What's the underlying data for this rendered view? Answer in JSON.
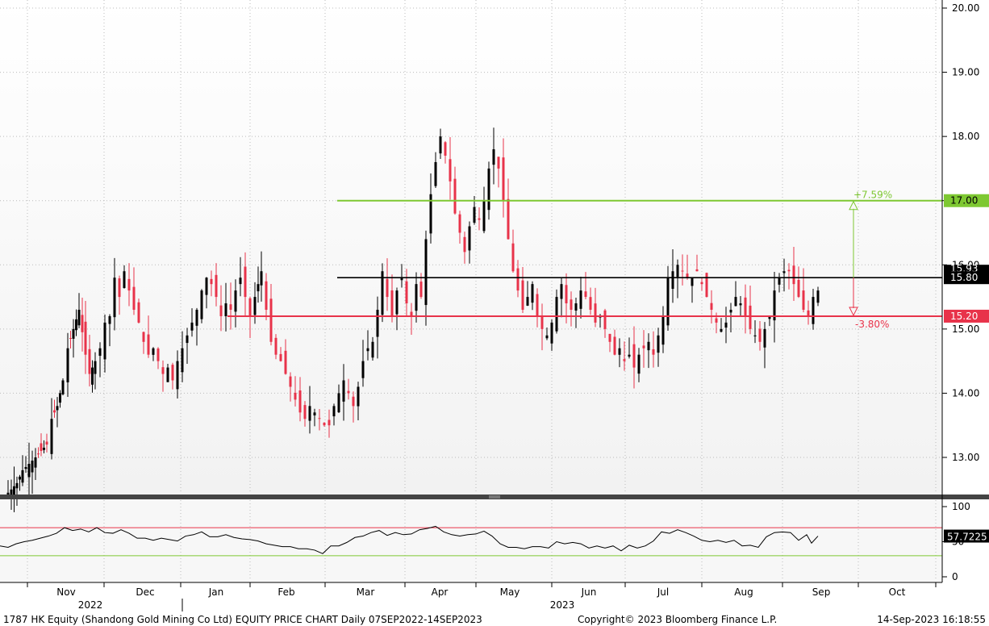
{
  "chart_data": [
    {
      "type": "candlestick",
      "panel": "price",
      "ylim": [
        12.4,
        20.0
      ],
      "yticks": [
        "13.00",
        "14.00",
        "15.00",
        "16.00",
        "17.00",
        "18.00",
        "19.00",
        "20.00"
      ],
      "grid": true,
      "series": [
        {
          "name": "",
          "close_path": [
            [
              0,
              12.4
            ],
            [
              8,
              12.5
            ],
            [
              15,
              12.6
            ],
            [
              22,
              12.8
            ],
            [
              30,
              12.9
            ],
            [
              38,
              13.0
            ],
            [
              45,
              13.1
            ],
            [
              52,
              13.2
            ],
            [
              58,
              13.6
            ],
            [
              65,
              13.8
            ],
            [
              72,
              14.2
            ],
            [
              78,
              14.7
            ],
            [
              85,
              15.0
            ],
            [
              92,
              15.3
            ],
            [
              100,
              14.6
            ],
            [
              105,
              14.3
            ],
            [
              112,
              14.5
            ],
            [
              118,
              14.7
            ],
            [
              124,
              15.1
            ],
            [
              130,
              15.2
            ],
            [
              136,
              15.8
            ],
            [
              142,
              15.5
            ],
            [
              148,
              15.9
            ],
            [
              154,
              15.6
            ],
            [
              160,
              15.3
            ],
            [
              166,
              15.1
            ],
            [
              172,
              14.8
            ],
            [
              178,
              14.6
            ],
            [
              184,
              14.7
            ],
            [
              190,
              14.5
            ],
            [
              196,
              14.3
            ],
            [
              202,
              14.4
            ],
            [
              208,
              14.2
            ],
            [
              214,
              14.5
            ],
            [
              220,
              14.7
            ],
            [
              226,
              14.9
            ],
            [
              232,
              15.1
            ],
            [
              238,
              15.3
            ],
            [
              244,
              15.6
            ],
            [
              250,
              15.8
            ],
            [
              256,
              15.7
            ],
            [
              262,
              15.5
            ],
            [
              268,
              15.2
            ],
            [
              274,
              15.4
            ],
            [
              280,
              15.3
            ],
            [
              286,
              15.6
            ],
            [
              292,
              15.8
            ],
            [
              298,
              15.5
            ],
            [
              304,
              15.2
            ],
            [
              310,
              15.5
            ],
            [
              318,
              15.9
            ],
            [
              324,
              15.3
            ],
            [
              330,
              14.8
            ],
            [
              336,
              14.6
            ],
            [
              342,
              14.5
            ],
            [
              348,
              14.3
            ],
            [
              354,
              14.1
            ],
            [
              360,
              13.9
            ],
            [
              366,
              13.7
            ],
            [
              372,
              13.6
            ],
            [
              378,
              13.8
            ],
            [
              384,
              13.7
            ],
            [
              390,
              13.6
            ],
            [
              396,
              13.5
            ],
            [
              402,
              13.5
            ],
            [
              408,
              13.8
            ],
            [
              414,
              14.0
            ],
            [
              420,
              14.2
            ],
            [
              426,
              14.0
            ],
            [
              432,
              13.8
            ],
            [
              438,
              14.1
            ],
            [
              444,
              14.5
            ],
            [
              450,
              14.7
            ],
            [
              456,
              14.8
            ],
            [
              462,
              15.3
            ],
            [
              468,
              15.9
            ],
            [
              474,
              15.5
            ],
            [
              480,
              15.2
            ],
            [
              486,
              15.6
            ],
            [
              492,
              15.8
            ],
            [
              498,
              15.4
            ],
            [
              504,
              15.2
            ],
            [
              510,
              15.7
            ],
            [
              516,
              15.5
            ],
            [
              522,
              16.4
            ],
            [
              528,
              17.1
            ],
            [
              534,
              17.6
            ],
            [
              540,
              18.0
            ],
            [
              546,
              17.7
            ],
            [
              552,
              17.3
            ],
            [
              558,
              16.8
            ],
            [
              564,
              16.5
            ],
            [
              570,
              16.2
            ],
            [
              576,
              16.6
            ],
            [
              582,
              16.9
            ],
            [
              588,
              16.7
            ],
            [
              594,
              17.0
            ],
            [
              600,
              17.5
            ],
            [
              606,
              17.8
            ],
            [
              612,
              17.5
            ],
            [
              618,
              17.0
            ],
            [
              624,
              16.4
            ],
            [
              630,
              15.9
            ],
            [
              636,
              15.6
            ],
            [
              642,
              15.3
            ],
            [
              648,
              15.5
            ],
            [
              654,
              15.7
            ],
            [
              660,
              15.2
            ],
            [
              666,
              15.0
            ],
            [
              672,
              14.9
            ],
            [
              678,
              15.1
            ],
            [
              684,
              15.5
            ],
            [
              690,
              15.7
            ],
            [
              696,
              15.4
            ],
            [
              702,
              15.3
            ],
            [
              708,
              15.4
            ],
            [
              714,
              15.6
            ],
            [
              720,
              15.5
            ],
            [
              726,
              15.3
            ],
            [
              732,
              15.1
            ],
            [
              738,
              15.2
            ],
            [
              744,
              15.0
            ],
            [
              750,
              14.8
            ],
            [
              756,
              14.6
            ],
            [
              762,
              14.7
            ],
            [
              768,
              14.5
            ],
            [
              774,
              14.6
            ],
            [
              780,
              14.4
            ],
            [
              786,
              14.6
            ],
            [
              792,
              14.7
            ],
            [
              798,
              14.8
            ],
            [
              804,
              14.6
            ],
            [
              810,
              14.9
            ],
            [
              816,
              15.2
            ],
            [
              822,
              15.8
            ],
            [
              828,
              15.9
            ],
            [
              834,
              16.0
            ],
            [
              840,
              15.9
            ],
            [
              846,
              15.8
            ],
            [
              852,
              15.8
            ],
            [
              858,
              15.9
            ],
            [
              864,
              15.7
            ],
            [
              870,
              15.5
            ],
            [
              876,
              15.3
            ],
            [
              882,
              15.1
            ],
            [
              888,
              15.0
            ],
            [
              894,
              15.1
            ],
            [
              900,
              15.3
            ],
            [
              906,
              15.5
            ],
            [
              912,
              15.4
            ],
            [
              918,
              15.2
            ],
            [
              924,
              15.0
            ],
            [
              930,
              14.9
            ],
            [
              936,
              14.8
            ],
            [
              942,
              15.0
            ],
            [
              948,
              15.2
            ],
            [
              954,
              15.6
            ],
            [
              960,
              15.8
            ],
            [
              966,
              15.9
            ],
            [
              972,
              15.9
            ],
            [
              978,
              15.7
            ],
            [
              984,
              15.5
            ],
            [
              990,
              15.3
            ],
            [
              996,
              15.2
            ],
            [
              1002,
              15.5
            ],
            [
              1008,
              15.6
            ],
            [
              1014,
              15.9
            ]
          ]
        }
      ],
      "levels": [
        {
          "value": 17.0,
          "label": "17.00",
          "color": "#7ec832",
          "pct": "+7.59%"
        },
        {
          "value": 15.8,
          "label": "15.80",
          "color": "#000000",
          "top_tag": "15.93"
        },
        {
          "value": 15.2,
          "label": "15.20",
          "color": "#e8334a",
          "pct": "-3.80%"
        }
      ]
    },
    {
      "type": "line",
      "panel": "rsi",
      "ylim": [
        -5,
        105
      ],
      "yticks": [
        "100",
        "50",
        "0"
      ],
      "upper_band": 70,
      "lower_band": 30,
      "upper_color": "#e8334a",
      "lower_color": "#7ec832",
      "last_value": "57.7225",
      "series": [
        {
          "name": "",
          "values_path": [
            [
              0,
              44
            ],
            [
              10,
              42
            ],
            [
              20,
              47
            ],
            [
              30,
              50
            ],
            [
              40,
              52
            ],
            [
              50,
              55
            ],
            [
              60,
              58
            ],
            [
              70,
              62
            ],
            [
              80,
              70
            ],
            [
              90,
              66
            ],
            [
              100,
              68
            ],
            [
              110,
              64
            ],
            [
              120,
              70
            ],
            [
              130,
              63
            ],
            [
              140,
              62
            ],
            [
              150,
              67
            ],
            [
              160,
              62
            ],
            [
              170,
              55
            ],
            [
              180,
              55
            ],
            [
              190,
              52
            ],
            [
              200,
              55
            ],
            [
              210,
              53
            ],
            [
              220,
              51
            ],
            [
              230,
              58
            ],
            [
              240,
              60
            ],
            [
              250,
              64
            ],
            [
              260,
              57
            ],
            [
              270,
              57
            ],
            [
              280,
              60
            ],
            [
              290,
              56
            ],
            [
              300,
              54
            ],
            [
              310,
              53
            ],
            [
              320,
              51
            ],
            [
              330,
              47
            ],
            [
              340,
              45
            ],
            [
              350,
              43
            ],
            [
              360,
              43
            ],
            [
              370,
              40
            ],
            [
              380,
              40
            ],
            [
              390,
              38
            ],
            [
              400,
              33
            ],
            [
              410,
              44
            ],
            [
              420,
              44
            ],
            [
              430,
              49
            ],
            [
              440,
              56
            ],
            [
              450,
              58
            ],
            [
              460,
              63
            ],
            [
              470,
              66
            ],
            [
              480,
              59
            ],
            [
              490,
              63
            ],
            [
              500,
              60
            ],
            [
              510,
              61
            ],
            [
              520,
              67
            ],
            [
              530,
              69
            ],
            [
              540,
              72
            ],
            [
              550,
              64
            ],
            [
              560,
              60
            ],
            [
              570,
              58
            ],
            [
              580,
              60
            ],
            [
              590,
              61
            ],
            [
              600,
              65
            ],
            [
              610,
              58
            ],
            [
              620,
              47
            ],
            [
              630,
              42
            ],
            [
              640,
              42
            ],
            [
              650,
              40
            ],
            [
              660,
              43
            ],
            [
              670,
              43
            ],
            [
              680,
              41
            ],
            [
              690,
              50
            ],
            [
              700,
              47
            ],
            [
              710,
              49
            ],
            [
              720,
              47
            ],
            [
              730,
              41
            ],
            [
              740,
              44
            ],
            [
              750,
              41
            ],
            [
              760,
              44
            ],
            [
              770,
              37
            ],
            [
              780,
              45
            ],
            [
              790,
              41
            ],
            [
              800,
              44
            ],
            [
              810,
              51
            ],
            [
              820,
              64
            ],
            [
              830,
              62
            ],
            [
              840,
              67
            ],
            [
              850,
              63
            ],
            [
              860,
              58
            ],
            [
              870,
              52
            ],
            [
              880,
              50
            ],
            [
              890,
              52
            ],
            [
              900,
              49
            ],
            [
              910,
              52
            ],
            [
              920,
              44
            ],
            [
              930,
              45
            ],
            [
              940,
              42
            ],
            [
              950,
              57
            ],
            [
              960,
              63
            ],
            [
              970,
              64
            ],
            [
              980,
              63
            ],
            [
              990,
              52
            ],
            [
              1000,
              60
            ],
            [
              1006,
              48
            ],
            [
              1014,
              58
            ]
          ]
        }
      ]
    }
  ],
  "x_axis": {
    "months": [
      "Nov",
      "Dec",
      "Jan",
      "Feb",
      "Mar",
      "Apr",
      "May",
      "Jun",
      "Jul",
      "Aug",
      "Sep",
      "Oct"
    ],
    "years": [
      "2022",
      "2023"
    ]
  },
  "footer": {
    "left": "1787 HK Equity (Shandong Gold Mining Co Ltd) EQUITY PRICE CHART  Daily 07SEP2022-14SEP2023",
    "center": "Copyright© 2023 Bloomberg Finance L.P.",
    "right": "14-Sep-2023 16:18:55"
  },
  "colors": {
    "up": "#000000",
    "down": "#e8334a",
    "grid": "#bbbbbb",
    "background_top": "#ffffff",
    "background_bottom": "#f2f2f2"
  }
}
